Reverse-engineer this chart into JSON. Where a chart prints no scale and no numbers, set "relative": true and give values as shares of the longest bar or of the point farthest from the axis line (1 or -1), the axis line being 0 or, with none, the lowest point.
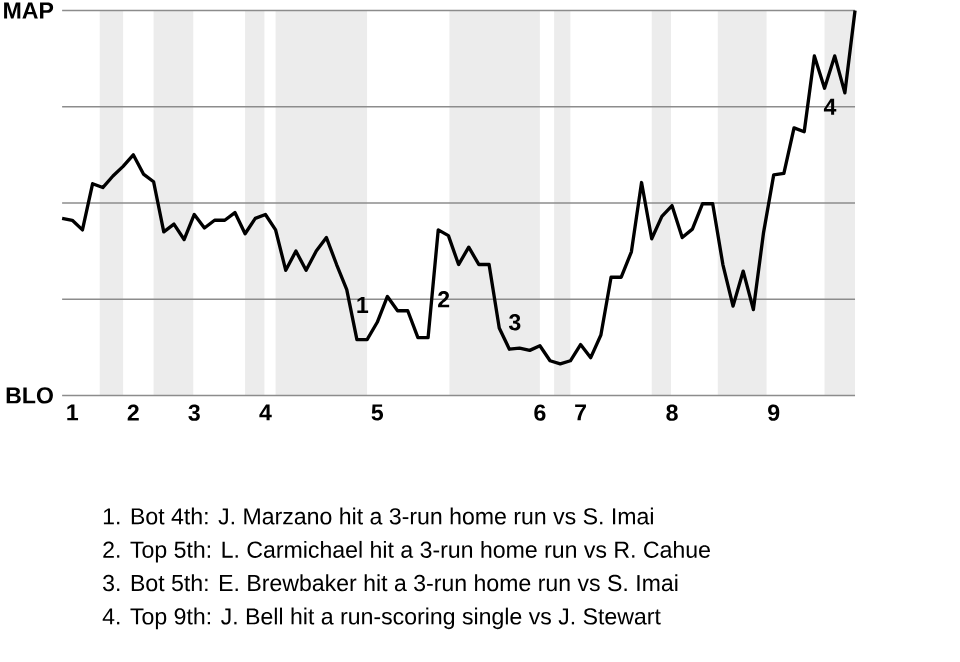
{
  "chart_data": {
    "type": "line",
    "categories": [
      null,
      "1",
      null,
      null,
      null,
      null,
      null,
      "2",
      null,
      null,
      null,
      null,
      null,
      "3",
      null,
      null,
      null,
      null,
      null,
      null,
      "4",
      null,
      null,
      null,
      null,
      null,
      null,
      null,
      null,
      null,
      null,
      "5",
      null,
      null,
      null,
      null,
      null,
      null,
      null,
      null,
      null,
      null,
      null,
      null,
      null,
      null,
      null,
      "6",
      null,
      null,
      null,
      "7",
      null,
      null,
      null,
      null,
      null,
      null,
      null,
      null,
      "8",
      null,
      null,
      null,
      null,
      null,
      null,
      null,
      null,
      null,
      "9",
      null,
      null,
      null,
      null,
      null,
      null,
      null,
      null
    ],
    "relative": true,
    "series": [
      {
        "color": "#000000",
        "values": [
          0.46,
          0.455,
          0.43,
          0.55,
          0.54,
          0.57,
          0.595,
          0.625,
          0.575,
          0.555,
          0.425,
          0.445,
          0.405,
          0.47,
          0.435,
          0.455,
          0.455,
          0.475,
          0.42,
          0.46,
          0.47,
          0.43,
          0.325,
          0.375,
          0.325,
          0.375,
          0.41,
          0.34,
          0.275,
          0.145,
          0.145,
          0.19,
          0.257,
          0.22,
          0.22,
          0.15,
          0.15,
          0.43,
          0.415,
          0.34,
          0.385,
          0.34,
          0.34,
          0.175,
          0.12,
          0.123,
          0.117,
          0.129,
          0.09,
          0.082,
          0.09,
          0.132,
          0.098,
          0.157,
          0.307,
          0.307,
          0.373,
          0.553,
          0.407,
          0.465,
          0.493,
          0.41,
          0.432,
          0.498,
          0.498,
          0.34,
          0.232,
          0.323,
          0.223,
          0.423,
          0.573,
          0.577,
          0.695,
          0.685,
          0.882,
          0.798,
          0.882,
          0.786,
          1
        ]
      }
    ],
    "grid": "y",
    "annotations": [
      "MAP",
      "BLO",
      "1",
      "2",
      "3",
      "4",
      "1. Bot 4th: J. Marzano hit a 3-run home run vs S. Imai",
      "2. Top 5th: L. Carmichael hit a 3-run home run vs R. Cahue",
      "3. Bot 5th: E. Brewbaker hit a 3-run home run vs S. Imai",
      "4. Top 9th: J. Bell hit a run-scoring single vs J. Stewart"
    ]
  }
}
